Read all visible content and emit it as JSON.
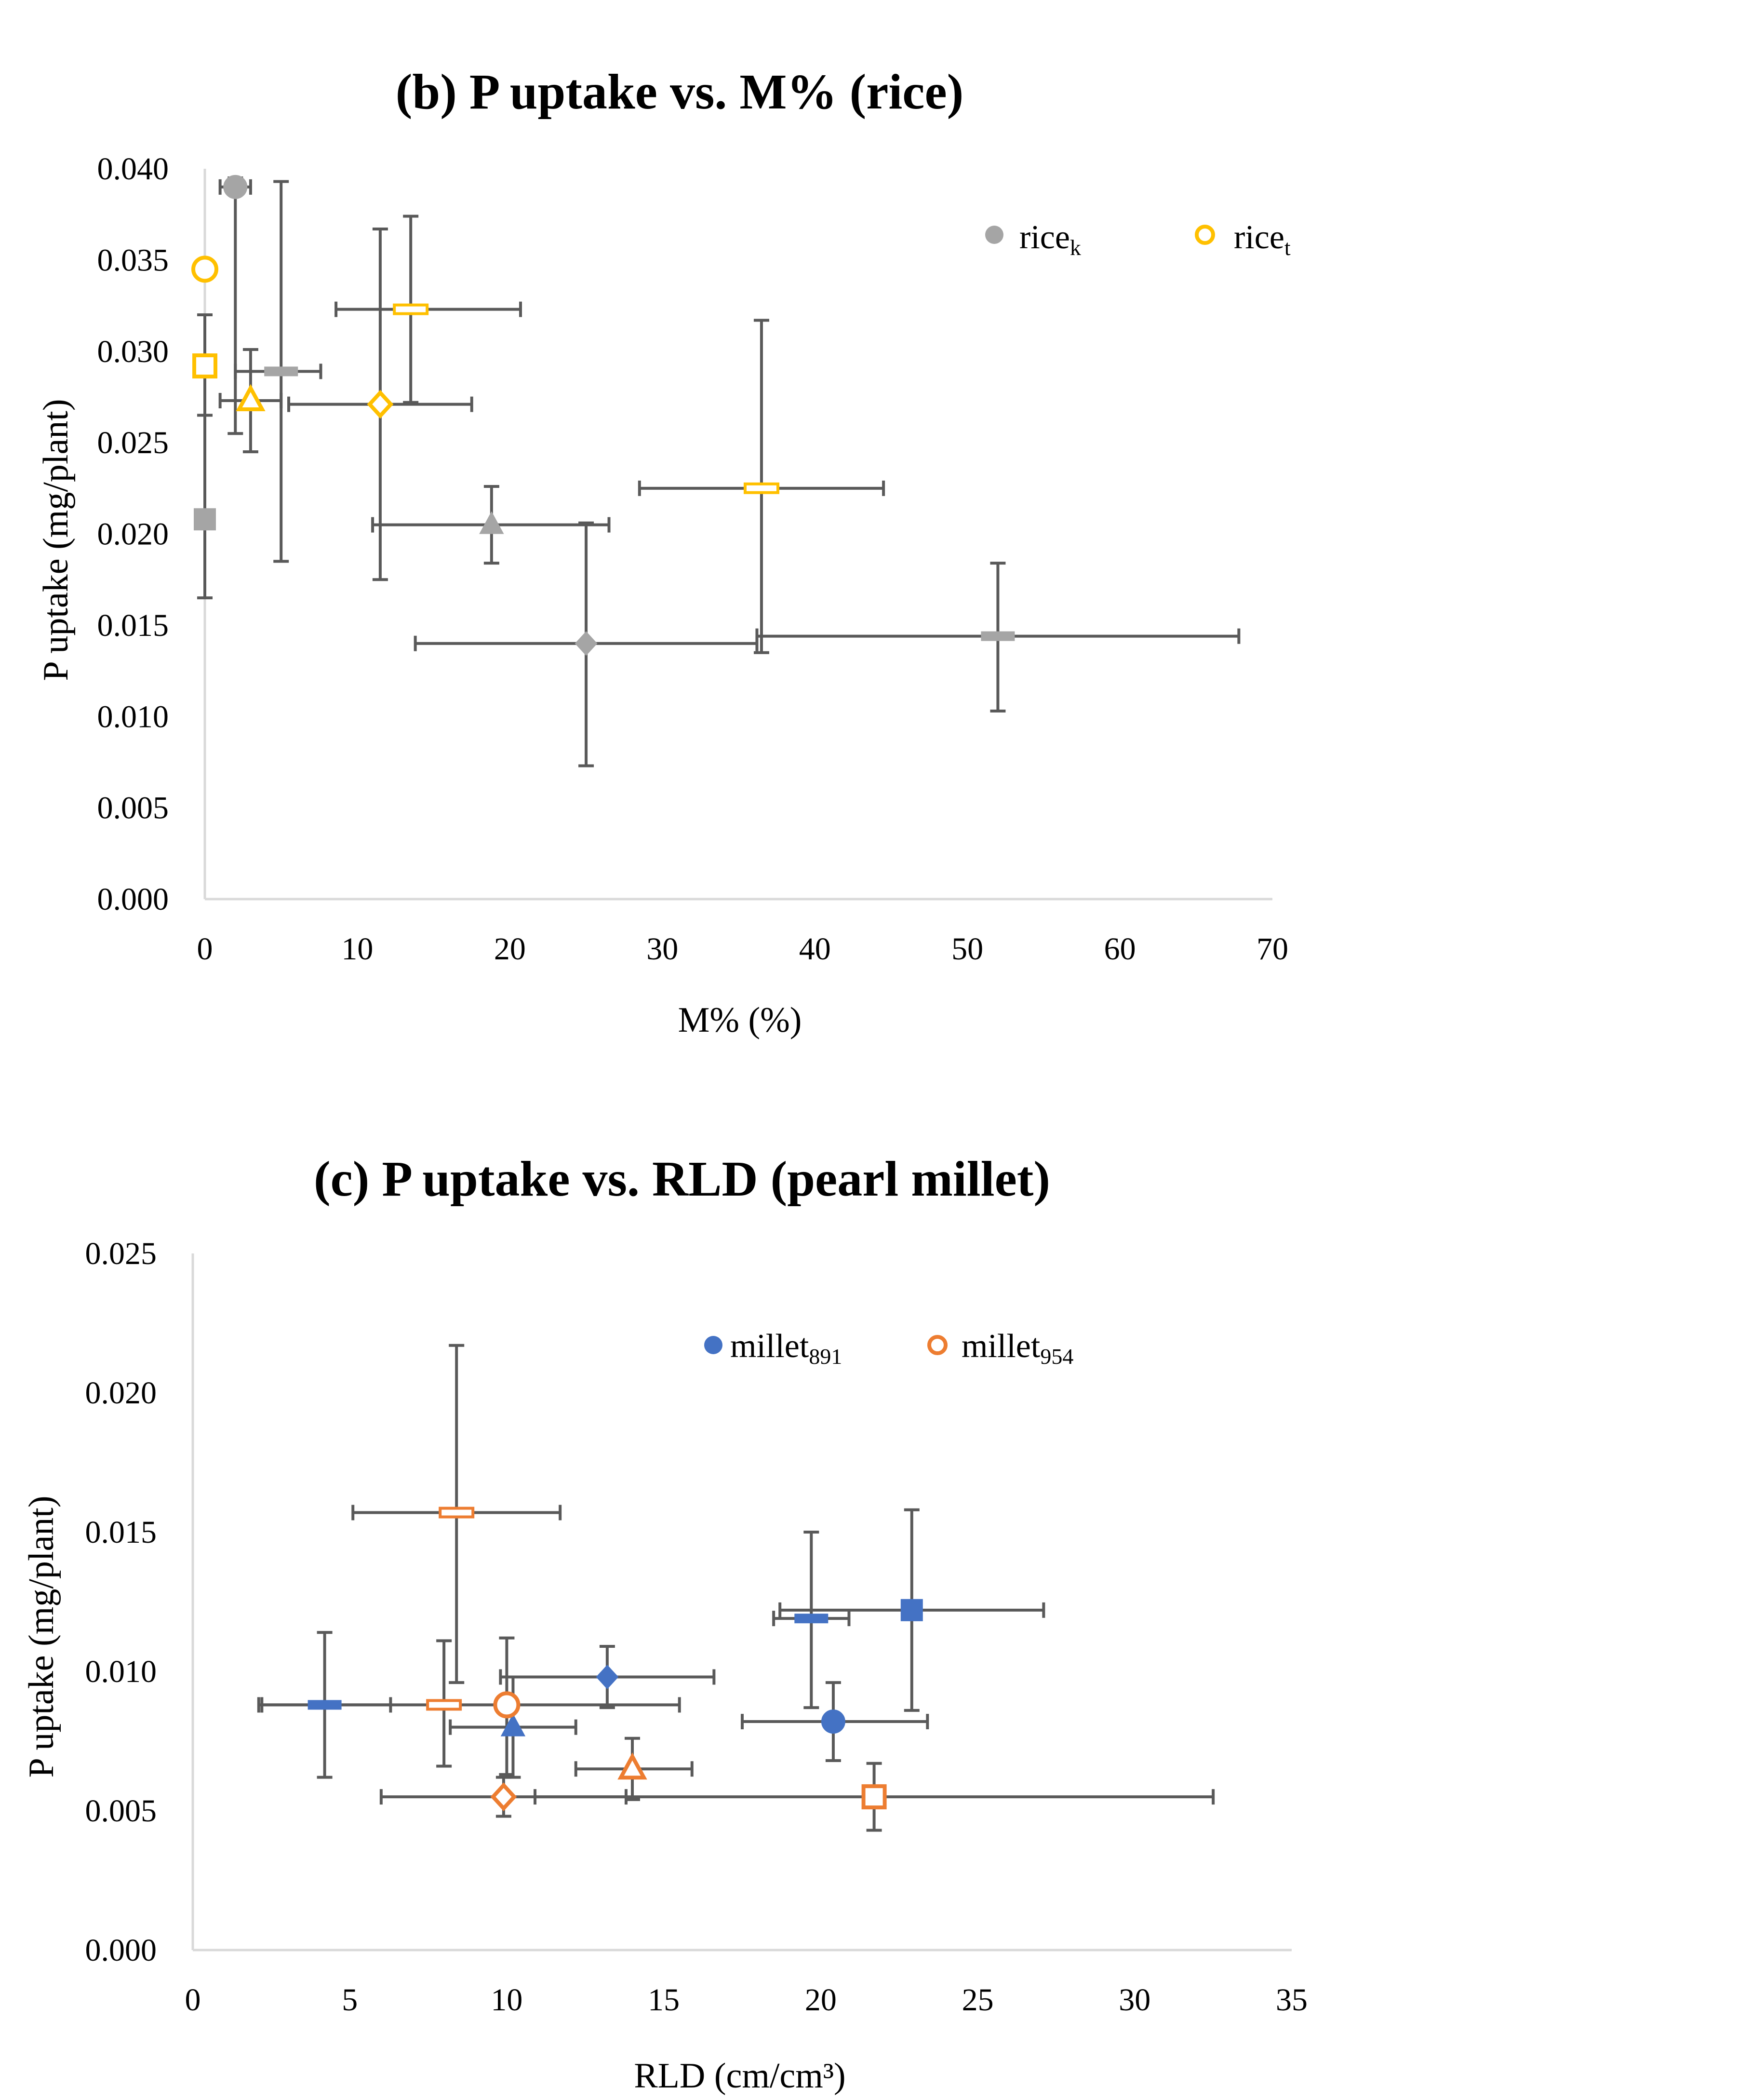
{
  "colors": {
    "grey": "#a5a5a5",
    "gold": "#ffc000",
    "blue": "#4472c4",
    "orange": "#ed7d31",
    "errorbar": "#595959",
    "axis": "#d9d9d9"
  },
  "chart_data": [
    {
      "type": "scatter",
      "title": "(b) P uptake vs. M% (rice)",
      "xlabel": "M% (%)",
      "ylabel": "P uptake (mg/plant)",
      "xlim": [
        0,
        70
      ],
      "ylim": [
        0,
        0.04
      ],
      "xticks": [
        0,
        10,
        20,
        30,
        40,
        50,
        60,
        70
      ],
      "yticks": [
        0,
        0.005,
        0.01,
        0.015,
        0.02,
        0.025,
        0.03,
        0.035,
        0.04
      ],
      "xtick_labels": [
        "0",
        "10",
        "20",
        "30",
        "40",
        "50",
        "60",
        "70"
      ],
      "ytick_labels": [
        "0.000",
        "0.005",
        "0.010",
        "0.015",
        "0.020",
        "0.025",
        "0.030",
        "0.035",
        "0.040"
      ],
      "legend_position": "top-right",
      "series": [
        {
          "name": "rice",
          "sub": "k",
          "color_key": "grey",
          "filled": true,
          "points": [
            {
              "marker": "circle",
              "x": 2.0,
              "y": 0.039,
              "xerr": [
                1.0,
                1.0
              ],
              "yerr": [
                0.0135,
                0.0005
              ]
            },
            {
              "marker": "square",
              "x": 0.0,
              "y": 0.0208,
              "xerr": [
                0,
                0
              ],
              "yerr": [
                0.0043,
                0.0112
              ]
            },
            {
              "marker": "triangle",
              "x": 18.8,
              "y": 0.0205,
              "xerr": [
                7.8,
                7.7
              ],
              "yerr": [
                0.0021,
                0.0021
              ]
            },
            {
              "marker": "diamond",
              "x": 25.0,
              "y": 0.014,
              "xerr": [
                11.2,
                11.2
              ],
              "yerr": [
                0.0067,
                0.0066
              ]
            },
            {
              "marker": "dash",
              "x": 5.0,
              "y": 0.0289,
              "xerr": [
                3.0,
                2.6
              ],
              "yerr": [
                0.0104,
                0.0104
              ]
            },
            {
              "marker": "dash",
              "x": 52.0,
              "y": 0.0144,
              "xerr": [
                15.8,
                15.8
              ],
              "yerr": [
                0.0041,
                0.004
              ]
            }
          ]
        },
        {
          "name": "rice",
          "sub": "t",
          "color_key": "gold",
          "filled": false,
          "points": [
            {
              "marker": "circle",
              "x": 0.0,
              "y": 0.0345,
              "xerr": [
                0,
                0
              ],
              "yerr": [
                0,
                0
              ]
            },
            {
              "marker": "square",
              "x": 0.0,
              "y": 0.0292,
              "xerr": [
                0,
                0
              ],
              "yerr": [
                0.0027,
                0.0028
              ]
            },
            {
              "marker": "triangle",
              "x": 3.0,
              "y": 0.0273,
              "xerr": [
                2.0,
                2.0
              ],
              "yerr": [
                0.0028,
                0.0028
              ]
            },
            {
              "marker": "diamond",
              "x": 11.5,
              "y": 0.0271,
              "xerr": [
                6.0,
                6.0
              ],
              "yerr": [
                0.0096,
                0.0096
              ]
            },
            {
              "marker": "dash",
              "x": 13.5,
              "y": 0.0323,
              "xerr": [
                4.9,
                7.2
              ],
              "yerr": [
                0.0051,
                0.0051
              ]
            },
            {
              "marker": "dash",
              "x": 36.5,
              "y": 0.0225,
              "xerr": [
                8.0,
                8.0
              ],
              "yerr": [
                0.009,
                0.0092
              ]
            }
          ]
        }
      ]
    },
    {
      "type": "scatter",
      "title": "(c) P uptake vs. RLD (pearl millet)",
      "xlabel": "RLD (cm/cm³)",
      "ylabel": "P uptake (mg/plant)",
      "xlim": [
        0,
        35
      ],
      "ylim": [
        0,
        0.025
      ],
      "xticks": [
        0,
        5,
        10,
        15,
        20,
        25,
        30,
        35
      ],
      "yticks": [
        0,
        0.005,
        0.01,
        0.015,
        0.02,
        0.025
      ],
      "xtick_labels": [
        "0",
        "5",
        "10",
        "15",
        "20",
        "25",
        "30",
        "35"
      ],
      "ytick_labels": [
        "0.000",
        "0.005",
        "0.010",
        "0.015",
        "0.020",
        "0.025"
      ],
      "legend_position": "top-center",
      "series": [
        {
          "name": "millet",
          "sub": "891",
          "color_key": "blue",
          "filled": true,
          "points": [
            {
              "marker": "circle",
              "x": 20.4,
              "y": 0.0082,
              "xerr": [
                2.9,
                3.0
              ],
              "yerr": [
                0.0014,
                0.0014
              ]
            },
            {
              "marker": "square",
              "x": 22.9,
              "y": 0.0122,
              "xerr": [
                4.2,
                4.2
              ],
              "yerr": [
                0.0036,
                0.0036
              ]
            },
            {
              "marker": "triangle",
              "x": 10.2,
              "y": 0.008,
              "xerr": [
                2.0,
                2.0
              ],
              "yerr": [
                0.0018,
                0.0018
              ]
            },
            {
              "marker": "diamond",
              "x": 13.2,
              "y": 0.0098,
              "xerr": [
                3.4,
                3.4
              ],
              "yerr": [
                0.0011,
                0.0011
              ]
            },
            {
              "marker": "dash",
              "x": 4.2,
              "y": 0.0088,
              "xerr": [
                2.1,
                2.1
              ],
              "yerr": [
                0.0026,
                0.0026
              ]
            },
            {
              "marker": "dash",
              "x": 19.7,
              "y": 0.0119,
              "xerr": [
                1.2,
                1.2
              ],
              "yerr": [
                0.0032,
                0.0031
              ]
            }
          ]
        },
        {
          "name": "millet",
          "sub": "954",
          "color_key": "orange",
          "filled": false,
          "points": [
            {
              "marker": "circle",
              "x": 10.0,
              "y": 0.0088,
              "xerr": [
                0,
                0
              ],
              "yerr": [
                0.0025,
                0.0024
              ]
            },
            {
              "marker": "square",
              "x": 21.7,
              "y": 0.0055,
              "xerr": [
                10.8,
                10.8
              ],
              "yerr": [
                0.0012,
                0.0012
              ]
            },
            {
              "marker": "triangle",
              "x": 14.0,
              "y": 0.0065,
              "xerr": [
                1.8,
                1.9
              ],
              "yerr": [
                0.0011,
                0.0011
              ]
            },
            {
              "marker": "diamond",
              "x": 9.9,
              "y": 0.0055,
              "xerr": [
                3.9,
                3.9
              ],
              "yerr": [
                0.0007,
                0.0007
              ]
            },
            {
              "marker": "dash",
              "x": 8.4,
              "y": 0.0157,
              "xerr": [
                3.3,
                3.3
              ],
              "yerr": [
                0.0061,
                0.006
              ]
            },
            {
              "marker": "dash",
              "x": 8.0,
              "y": 0.0088,
              "xerr": [
                5.8,
                7.5
              ],
              "yerr": [
                0.0022,
                0.0023
              ]
            }
          ]
        }
      ]
    }
  ]
}
